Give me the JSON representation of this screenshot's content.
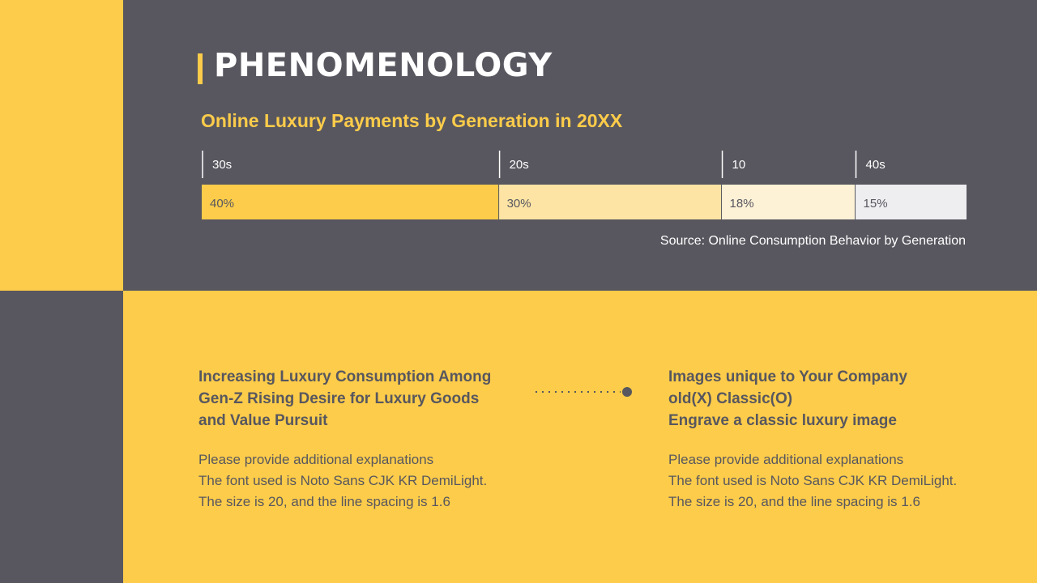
{
  "title": "PHENOMENOLOGY",
  "subtitle": "Online Luxury Payments by Generation in 20XX",
  "source": "Source: Online Consumption Behavior by Generation",
  "colors": {
    "yellow": "#fdcc4a",
    "dark": "#58575f",
    "white": "#ffffff"
  },
  "chart_data": {
    "type": "bar",
    "orientation": "stacked-horizontal",
    "title": "Online Luxury Payments by Generation in 20XX",
    "categories": [
      "30s",
      "20s",
      "10",
      "40s"
    ],
    "values": [
      40,
      30,
      18,
      15
    ],
    "labels": [
      "40%",
      "30%",
      "18%",
      "15%"
    ],
    "colors": [
      "#fdcc4a",
      "#fde4a4",
      "#fdf1d6",
      "#eeeef0"
    ],
    "legend": "none",
    "grid": false
  },
  "left": {
    "heading": [
      "Increasing Luxury Consumption Among",
      "Gen-Z Rising Desire for Luxury Goods",
      "and Value Pursuit"
    ],
    "body": [
      "Please provide additional explanations",
      "The font used is Noto Sans CJK KR DemiLight.",
      "The size is 20, and the line spacing is 1.6"
    ]
  },
  "right": {
    "heading": [
      "Images unique to Your Company",
      "old(X) Classic(O)",
      "Engrave a classic luxury image"
    ],
    "body": [
      "Please provide additional explanations",
      "The font used is Noto Sans CJK KR DemiLight.",
      "The size is 20, and the line spacing is 1.6"
    ]
  }
}
